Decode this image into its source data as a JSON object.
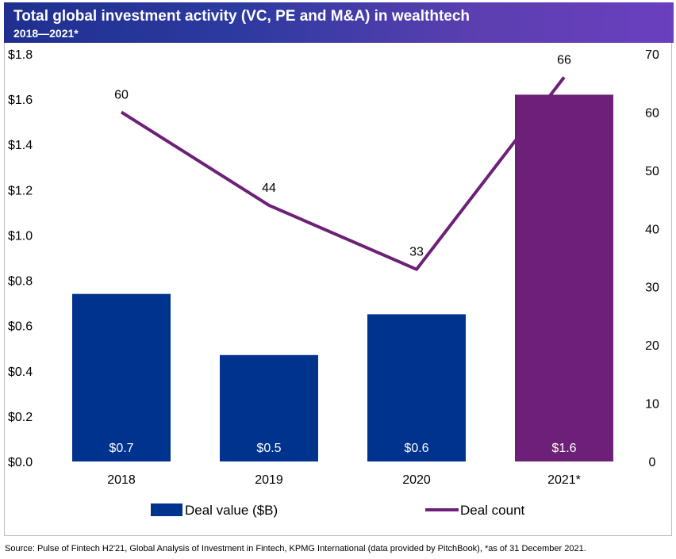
{
  "header": {
    "title": "Total global investment activity (VC, PE and M&A) in wealthtech",
    "subtitle": "2018—2021*"
  },
  "source": "Source: Pulse of Fintech H2'21, Global Analysis of Investment in Fintech, KPMG International (data provided by PitchBook), *as of 31 December 2021.",
  "colors": {
    "bar_default": "#00338d",
    "bar_highlight": "#6d2077",
    "line": "#6d2077",
    "header_start": "#1f2f8f",
    "header_end": "#6b3fbf"
  },
  "chart_data": {
    "type": "bar",
    "title": "Total global investment activity (VC, PE and M&A) in wealthtech",
    "subtitle": "2018—2021*",
    "categories": [
      "2018",
      "2019",
      "2020",
      "2021*"
    ],
    "series": [
      {
        "name": "Deal value ($B)",
        "type": "bar",
        "axis": "left",
        "values": [
          0.74,
          0.47,
          0.65,
          1.62
        ],
        "labels": [
          "$0.7",
          "$0.5",
          "$0.6",
          "$1.6"
        ],
        "highlight_last": true
      },
      {
        "name": "Deal count",
        "type": "line",
        "axis": "right",
        "values": [
          60,
          44,
          33,
          66
        ],
        "labels": [
          "60",
          "44",
          "33",
          "66"
        ]
      }
    ],
    "y_left": {
      "ylim": [
        0,
        1.8
      ],
      "ticks": [
        0,
        0.2,
        0.4,
        0.6,
        0.8,
        1.0,
        1.2,
        1.4,
        1.6,
        1.8
      ],
      "tick_labels": [
        "$0.0",
        "$0.2",
        "$0.4",
        "$0.6",
        "$0.8",
        "$1.0",
        "$1.2",
        "$1.4",
        "$1.6",
        "$1.8"
      ]
    },
    "y_right": {
      "ylim": [
        0,
        70
      ],
      "ticks": [
        0,
        10,
        20,
        30,
        40,
        50,
        60,
        70
      ],
      "tick_labels": [
        "0",
        "10",
        "20",
        "30",
        "40",
        "50",
        "60",
        "70"
      ]
    },
    "grid": false,
    "legend_position": "bottom"
  }
}
